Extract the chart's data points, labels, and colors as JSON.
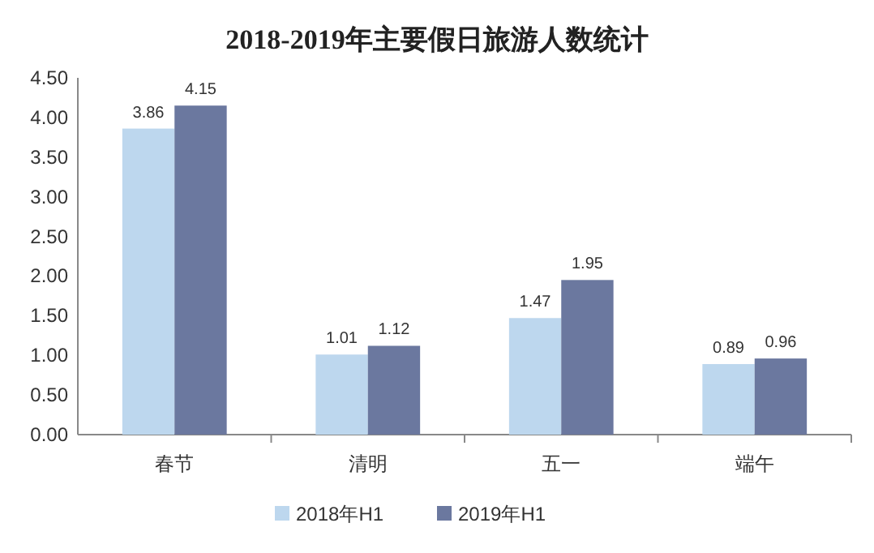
{
  "chart_data": {
    "type": "bar",
    "title": "2018-2019年主要假日旅游人数统计",
    "categories": [
      "春节",
      "清明",
      "五一",
      "端午"
    ],
    "series": [
      {
        "name": "2018年H1",
        "color": "#bdd7ee",
        "values": [
          3.86,
          1.01,
          1.47,
          0.89
        ]
      },
      {
        "name": "2019年H1",
        "color": "#6b789f",
        "values": [
          4.15,
          1.12,
          1.95,
          0.96
        ]
      }
    ],
    "ylim": [
      0,
      4.5
    ],
    "yticks": [
      {
        "value": 0,
        "label": "0.00"
      },
      {
        "value": 0.5,
        "label": "0.50"
      },
      {
        "value": 1,
        "label": "1.00"
      },
      {
        "value": 1.5,
        "label": "1.50"
      },
      {
        "value": 2,
        "label": "2.00"
      },
      {
        "value": 2.5,
        "label": "2.50"
      },
      {
        "value": 3,
        "label": "3.00"
      },
      {
        "value": 3.5,
        "label": "3.50"
      },
      {
        "value": 4,
        "label": "4.00"
      },
      {
        "value": 4.5,
        "label": "4.50"
      }
    ],
    "data_labels": true,
    "legend": "bottom"
  }
}
